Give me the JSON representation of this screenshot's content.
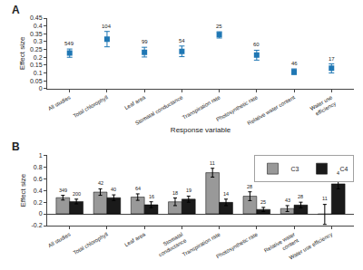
{
  "chart_data": [
    {
      "type": "scatter",
      "title": "A",
      "categories": [
        "All studies",
        "Total chlorophyll",
        "Leaf area",
        "Stomatal conductance",
        "Transpiration rate",
        "Photosynthetic rate",
        "Relative water content",
        "Water use\nefficiency"
      ],
      "values": [
        0.228,
        0.315,
        0.232,
        0.237,
        0.345,
        0.215,
        0.108,
        0.13
      ],
      "errors_low": [
        0.028,
        0.048,
        0.03,
        0.033,
        0.022,
        0.033,
        0.018,
        0.03
      ],
      "errors_high": [
        0.025,
        0.05,
        0.032,
        0.035,
        0.018,
        0.03,
        0.018,
        0.028
      ],
      "n_labels": [
        "549",
        "104",
        "99",
        "54",
        "25",
        "60",
        "46",
        "17"
      ],
      "xlabel": "Response variable",
      "ylabel": "Effect size",
      "ylim": [
        0,
        0.45
      ],
      "yticks": [
        0,
        0.05,
        0.1,
        0.15,
        0.2,
        0.25,
        0.3,
        0.35,
        0.4,
        0.45
      ],
      "grid": false,
      "marker": "square"
    },
    {
      "type": "bar",
      "title": "B",
      "categories": [
        "All studies",
        "Total chlorophyll",
        "Leaf area",
        "Stomatal\nconductance",
        "Transpiration rate",
        "Photosynthetic rate",
        "Relative water\ncontent",
        "Water use efficiency"
      ],
      "series": [
        {
          "name": "C3",
          "color": "#999999",
          "values": [
            0.275,
            0.37,
            0.285,
            0.205,
            0.7,
            0.3,
            0.09,
            -0.01
          ],
          "errors": [
            0.04,
            0.055,
            0.055,
            0.065,
            0.075,
            0.075,
            0.05,
            0.17
          ],
          "n_labels": [
            "349",
            "42",
            "64",
            "18",
            "11",
            "28",
            "43",
            "11"
          ]
        },
        {
          "name": "C4",
          "color": "#1a1a1a",
          "values": [
            0.21,
            0.275,
            0.155,
            0.25,
            0.195,
            0.075,
            0.15,
            0.51
          ],
          "errors": [
            0.04,
            0.048,
            0.05,
            0.052,
            0.055,
            0.035,
            0.048,
            0.085
          ],
          "n_labels": [
            "200",
            "40",
            "16",
            "19",
            "14",
            "25",
            "28",
            "4"
          ]
        }
      ],
      "ylabel": "Effect size",
      "ylim": [
        -0.2,
        1.0
      ],
      "yticks": [
        -0.2,
        0.0,
        0.2,
        0.4,
        0.6,
        0.8,
        1.0
      ],
      "grid": false,
      "legend": "upper right"
    }
  ]
}
